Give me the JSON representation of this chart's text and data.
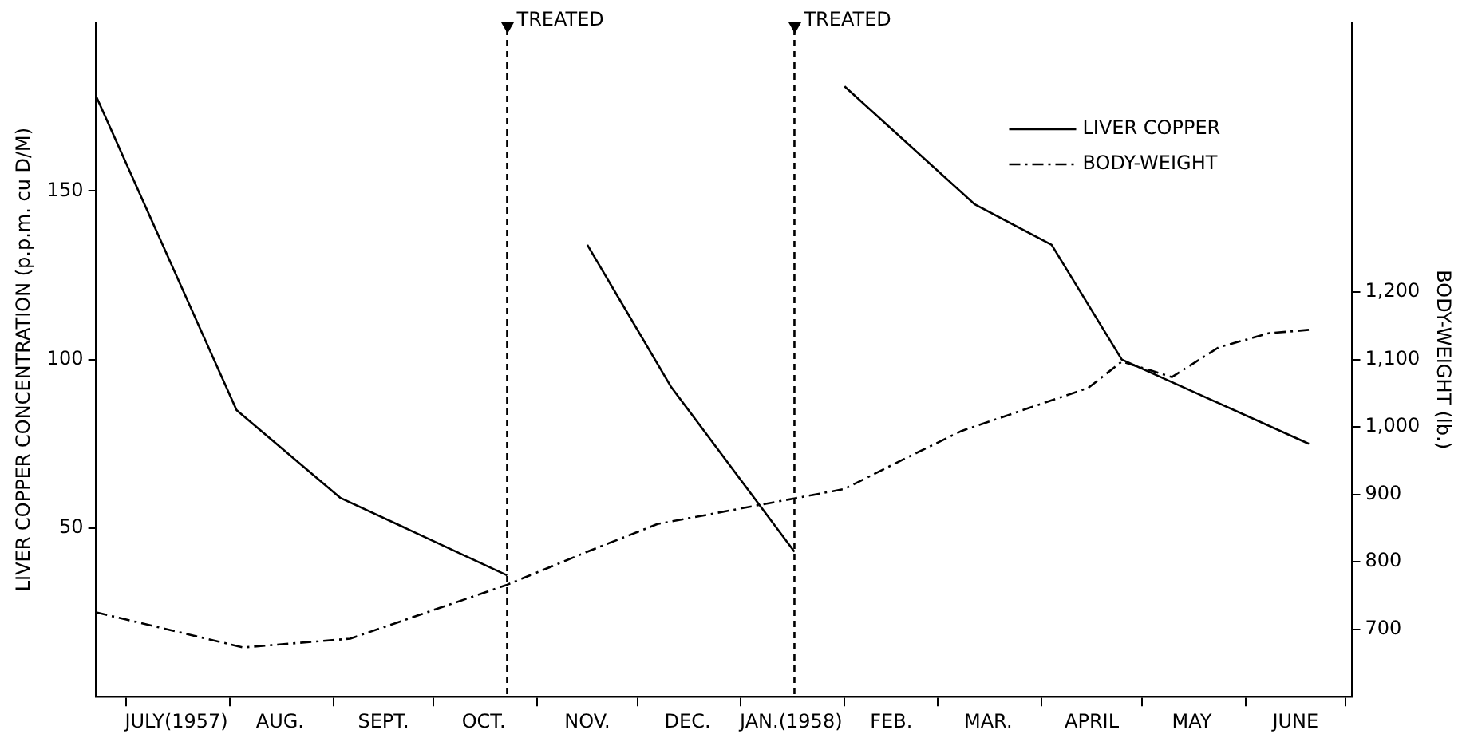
{
  "chart_data": {
    "type": "line",
    "ylabel": "LIVER COPPER CONCENTRATION (p.p.m. cu D/M)",
    "y2label": "BODY-WEIGHT (lb.)",
    "xlim": [
      "1957-06-22",
      "1958-07-03"
    ],
    "xticks": [
      {
        "value": "1957-07-01",
        "label": null
      },
      {
        "value": "1957-07-16",
        "label": "JULY(1957)"
      },
      {
        "value": "1957-08-01",
        "label": null
      },
      {
        "value": "1957-08-16",
        "label": "AUG."
      },
      {
        "value": "1957-09-01",
        "label": null
      },
      {
        "value": "1957-09-16",
        "label": "SEPT."
      },
      {
        "value": "1957-10-01",
        "label": null
      },
      {
        "value": "1957-10-16",
        "label": "OCT."
      },
      {
        "value": "1957-11-01",
        "label": null
      },
      {
        "value": "1957-11-16",
        "label": "NOV."
      },
      {
        "value": "1957-12-01",
        "label": null
      },
      {
        "value": "1957-12-16",
        "label": "DEC."
      },
      {
        "value": "1958-01-01",
        "label": null
      },
      {
        "value": "1958-01-16",
        "label": "JAN.(1958)"
      },
      {
        "value": "1958-02-01",
        "label": null
      },
      {
        "value": "1958-02-15",
        "label": "FEB."
      },
      {
        "value": "1958-03-01",
        "label": null
      },
      {
        "value": "1958-03-16",
        "label": "MAR."
      },
      {
        "value": "1958-04-01",
        "label": null
      },
      {
        "value": "1958-04-16",
        "label": "APRIL"
      },
      {
        "value": "1958-05-01",
        "label": null
      },
      {
        "value": "1958-05-16",
        "label": "MAY"
      },
      {
        "value": "1958-06-01",
        "label": null
      },
      {
        "value": "1958-06-16",
        "label": "JUNE"
      },
      {
        "value": "1958-07-01",
        "label": null
      }
    ],
    "ylim": [
      0,
      200
    ],
    "yticks": [
      50,
      100,
      150
    ],
    "y2lim": [
      600,
      1600
    ],
    "y2ticks": [
      700,
      800,
      900,
      {
        "value": 1000,
        "label": "1,000"
      },
      {
        "value": 1100,
        "label": "1,100"
      },
      {
        "value": 1200,
        "label": "1,200"
      }
    ],
    "series": [
      {
        "name": "LIVER COPPER",
        "color": "#000000",
        "line_style": "solid",
        "x": [
          "1957-06-22",
          "1957-08-03",
          "1957-09-03",
          "1957-10-23",
          "1957-11-01",
          "1957-11-16",
          "1957-12-11",
          "1958-01-17",
          "1958-01-25",
          "1958-02-01",
          "1958-03-12",
          "1958-04-04",
          "1958-04-25",
          "1958-06-20"
        ],
        "values": [
          178,
          85,
          59,
          36,
          null,
          134,
          92,
          43,
          null,
          181,
          146,
          134,
          100,
          75
        ]
      },
      {
        "name": "BODY-WEIGHT",
        "color": "#000000",
        "line_style": "dashed",
        "axis": "y2",
        "x": [
          "1957-06-22",
          "1957-08-05",
          "1957-09-06",
          "1957-10-23",
          "1957-11-16",
          "1957-12-07",
          "1958-01-17",
          "1958-02-01",
          "1958-02-17",
          "1958-03-08",
          "1958-04-15",
          "1958-04-25",
          "1958-05-10",
          "1958-05-24",
          "1958-06-08",
          "1958-06-20"
        ],
        "values": [
          725,
          673,
          686,
          766,
          815,
          856,
          894,
          908,
          948,
          994,
          1058,
          1097,
          1074,
          1118,
          1139,
          1144
        ]
      }
    ],
    "ref_lines": [
      {
        "axis": "x",
        "value": "1957-10-23",
        "label": "TREATED",
        "line_style": "dashed"
      },
      {
        "axis": "x",
        "value": "1958-01-17",
        "label": "TREATED",
        "line_style": "dashed"
      }
    ],
    "legend": "top right",
    "grid": false,
    "marker": "none"
  }
}
